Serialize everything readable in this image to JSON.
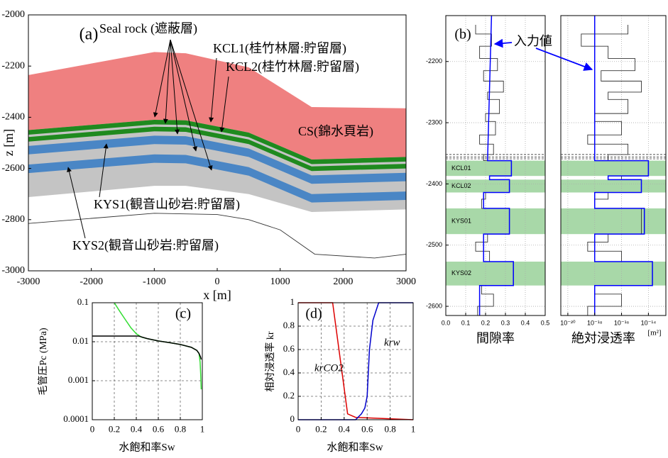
{
  "chart_data": [
    {
      "type": "area",
      "panel_label": "(a)",
      "xlabel": "x [m]",
      "ylabel": "z [m]",
      "x": [
        -3000,
        -1000,
        -500,
        500,
        1500,
        3000
      ],
      "bands": [
        {
          "color": "#c4c4c4",
          "top": [
            -2450,
            -2410,
            -2412,
            -2460,
            -2565,
            -2555
          ],
          "bottom": [
            -2712,
            -2668,
            -2668,
            -2700,
            -2770,
            -2760
          ]
        },
        {
          "color": "#ef8080",
          "top": [
            -2235,
            -2145,
            -2150,
            -2205,
            -2360,
            -2365
          ],
          "bottom": [
            -2450,
            -2410,
            -2412,
            -2460,
            -2565,
            -2555
          ]
        },
        {
          "color": "#1f8a1f",
          "top": [
            -2450,
            -2410,
            -2412,
            -2460,
            -2565,
            -2555
          ],
          "bottom": [
            -2468,
            -2428,
            -2430,
            -2478,
            -2583,
            -2573
          ]
        },
        {
          "color": "#1f8a1f",
          "top": [
            -2477,
            -2437,
            -2439,
            -2487,
            -2592,
            -2582
          ],
          "bottom": [
            -2495,
            -2455,
            -2457,
            -2505,
            -2610,
            -2600
          ]
        },
        {
          "color": "#4a86c5",
          "top": [
            -2512,
            -2472,
            -2474,
            -2522,
            -2627,
            -2617
          ],
          "bottom": [
            -2545,
            -2505,
            -2507,
            -2555,
            -2660,
            -2650
          ]
        },
        {
          "color": "#4a86c5",
          "top": [
            -2585,
            -2545,
            -2547,
            -2595,
            -2700,
            -2690
          ],
          "bottom": [
            -2618,
            -2578,
            -2580,
            -2628,
            -2733,
            -2723
          ]
        }
      ],
      "series": [
        {
          "color": "#333333",
          "x": [
            -3000,
            -2000,
            -1000,
            0,
            500,
            1000,
            1550,
            2500,
            3000
          ],
          "values": [
            -2815,
            -2795,
            -2775,
            -2780,
            -2800,
            -2840,
            -2935,
            -2950,
            -2935
          ]
        }
      ],
      "annotations": [
        "Seal rock (遮蔽層)",
        "KCL1(桂竹林層:貯留層)",
        "KCL2(桂竹林層:貯留層)",
        "CS(錦水頁岩)",
        "KYS1(観音山砂岩:貯留層)",
        "KYS2(観音山砂岩:貯留層)"
      ],
      "xlim": [
        -3000,
        3000
      ],
      "ylim": [
        -3000,
        -2000
      ],
      "xticks": [
        -3000,
        -2000,
        -1000,
        0,
        1000,
        2000,
        3000
      ],
      "yticks": [
        -3000,
        -2800,
        -2600,
        -2400,
        -2200,
        -2000
      ],
      "grid": false
    },
    {
      "type": "line",
      "panel_label": "(b)",
      "xlabel": "間隙率",
      "annotations": [
        "入力値"
      ],
      "series": [
        {
          "color": "#333333",
          "x": [
            0.15,
            0.15,
            0.23,
            0.23,
            0.17,
            0.17,
            0.26,
            0.26,
            0.19,
            0.19,
            0.29,
            0.29,
            0.21,
            0.21,
            0.27,
            0.27,
            0.2,
            0.2,
            0.25,
            0.25,
            0.17,
            0.17,
            0.24,
            0.24,
            0.19,
            0.19,
            0.33,
            0.33,
            0.22,
            0.22,
            0.32,
            0.32,
            0.2,
            0.2,
            0.18,
            0.18,
            0.32,
            0.32,
            0.21,
            0.21,
            0.15,
            0.15,
            0.22,
            0.22,
            0.34,
            0.34,
            0.18,
            0.18,
            0.24,
            0.24,
            0.16,
            0.16
          ],
          "values": [
            -2140,
            -2155,
            -2155,
            -2175,
            -2175,
            -2195,
            -2195,
            -2215,
            -2215,
            -2232,
            -2232,
            -2250,
            -2250,
            -2262,
            -2262,
            -2285,
            -2285,
            -2298,
            -2298,
            -2320,
            -2320,
            -2335,
            -2335,
            -2352,
            -2352,
            -2362,
            -2362,
            -2387,
            -2387,
            -2393,
            -2393,
            -2414,
            -2414,
            -2425,
            -2425,
            -2440,
            -2440,
            -2482,
            -2482,
            -2495,
            -2495,
            -2510,
            -2510,
            -2527,
            -2527,
            -2566,
            -2566,
            -2580,
            -2580,
            -2600,
            -2600,
            -2615
          ]
        },
        {
          "color": "#0000ff",
          "x": [
            0.23,
            0.21,
            0.33,
            0.33,
            0.22,
            0.22,
            0.32,
            0.32,
            0.19,
            0.19,
            0.32,
            0.32,
            0.19,
            0.19,
            0.34,
            0.34,
            0.17,
            0.17
          ],
          "values": [
            -2125,
            -2362,
            -2362,
            -2387,
            -2387,
            -2393,
            -2393,
            -2414,
            -2414,
            -2440,
            -2440,
            -2482,
            -2482,
            -2527,
            -2527,
            -2566,
            -2566,
            -2615
          ]
        }
      ],
      "spans": [
        {
          "label": "KCL01",
          "lim": [
            -2387,
            -2362
          ]
        },
        {
          "label": "KCL02",
          "lim": [
            -2414,
            -2393
          ]
        },
        {
          "label": "KYS01",
          "lim": [
            -2482,
            -2440
          ]
        },
        {
          "label": "KYS02",
          "lim": [
            -2566,
            -2527
          ]
        }
      ],
      "span_color": "#a8d8a8",
      "dashed_lines": [
        -2352,
        -2356,
        -2359
      ],
      "xlim": [
        0,
        0.5
      ],
      "ylim": [
        -2615,
        -2125
      ],
      "xticks": [
        {
          "value": 0,
          "label": "0.0"
        },
        0.1,
        0.2,
        0.3,
        0.4,
        0.5
      ],
      "yticks": [
        -2600,
        -2500,
        -2400,
        -2300,
        -2200
      ],
      "grid": true
    },
    {
      "type": "line",
      "xlabel": "絶対浸透率",
      "unit": "[m²]",
      "xscale": "log",
      "series": [
        {
          "color": "#333333",
          "x": [
            3e-16,
            3e-16,
            1e-19,
            1e-19,
            1e-17,
            1e-17,
            1e-15,
            1e-15,
            3e-18,
            3e-18,
            3e-15,
            3e-15,
            1e-17,
            1e-17,
            3e-16,
            3e-16,
            1e-18,
            1e-18,
            1e-16,
            1e-16,
            3e-19,
            3e-19,
            3e-16,
            3e-16,
            1e-17,
            1e-17,
            1e-14,
            1e-14,
            1e-16,
            1e-16,
            3e-15,
            3e-15,
            1e-17,
            1e-17,
            1e-18,
            1e-18,
            3e-15,
            3e-15,
            1e-17,
            1e-17,
            3e-19,
            3e-19,
            1e-16,
            1e-16,
            2e-14,
            2e-14,
            1e-18,
            1e-18,
            1e-16,
            1e-16,
            3e-19,
            3e-19
          ],
          "values": [
            -2140,
            -2155,
            -2155,
            -2175,
            -2175,
            -2195,
            -2195,
            -2215,
            -2215,
            -2232,
            -2232,
            -2250,
            -2250,
            -2262,
            -2262,
            -2285,
            -2285,
            -2298,
            -2298,
            -2320,
            -2320,
            -2335,
            -2335,
            -2352,
            -2352,
            -2362,
            -2362,
            -2387,
            -2387,
            -2393,
            -2393,
            -2414,
            -2414,
            -2425,
            -2425,
            -2440,
            -2440,
            -2482,
            -2482,
            -2495,
            -2495,
            -2510,
            -2510,
            -2527,
            -2527,
            -2566,
            -2566,
            -2580,
            -2580,
            -2600,
            -2600,
            -2615
          ]
        },
        {
          "color": "#0000ff",
          "x": [
            1e-18,
            1e-18,
            1e-14,
            1e-14,
            1e-17,
            1e-17,
            3e-15,
            3e-15,
            1e-18,
            1e-18,
            5e-15,
            5e-15,
            1e-18,
            1e-18,
            2e-14,
            2e-14,
            1e-18,
            1e-18
          ],
          "values": [
            -2125,
            -2362,
            -2362,
            -2387,
            -2387,
            -2393,
            -2393,
            -2414,
            -2414,
            -2440,
            -2440,
            -2482,
            -2482,
            -2527,
            -2527,
            -2566,
            -2566,
            -2615
          ]
        }
      ],
      "spans": [
        {
          "lim": [
            -2387,
            -2362
          ]
        },
        {
          "lim": [
            -2414,
            -2393
          ]
        },
        {
          "lim": [
            -2482,
            -2440
          ]
        },
        {
          "lim": [
            -2566,
            -2527
          ]
        }
      ],
      "span_color": "#a8d8a8",
      "dashed_lines": [
        -2352,
        -2356,
        -2359
      ],
      "xlim": [
        3e-21,
        2e-13
      ],
      "ylim": [
        -2615,
        -2125
      ],
      "xticks": [
        {
          "value": 1e-20,
          "label": "10⁻²⁰"
        },
        {
          "value": 1e-18,
          "label": "10⁻¹⁸"
        },
        {
          "value": 1e-16,
          "label": "10⁻¹⁶"
        },
        {
          "value": 1e-14,
          "label": "10⁻¹⁴"
        }
      ],
      "grid": true
    },
    {
      "type": "line",
      "panel_label": "(c)",
      "xlabel": "水飽和率Sw",
      "ylabel": "毛管圧Pc (MPa)",
      "yscale": "log",
      "series": [
        {
          "color": "#33dd33",
          "x": [
            0.2,
            0.25,
            0.3,
            0.35,
            0.4,
            0.45,
            0.5,
            0.6,
            0.7,
            0.8,
            0.9,
            0.95,
            0.97,
            0.98,
            0.985,
            0.99
          ],
          "values": [
            0.1,
            0.06,
            0.037,
            0.023,
            0.016,
            0.013,
            0.012,
            0.0105,
            0.0095,
            0.0085,
            0.0072,
            0.006,
            0.005,
            0.003,
            0.0015,
            0.0006
          ]
        },
        {
          "color": "#000000",
          "x": [
            0,
            0.42,
            0.5,
            0.6,
            0.7,
            0.8,
            0.9,
            0.95,
            0.97,
            0.985,
            0.99
          ],
          "values": [
            0.014,
            0.014,
            0.012,
            0.0105,
            0.0095,
            0.0085,
            0.0072,
            0.006,
            0.005,
            0.004,
            0.0035
          ]
        }
      ],
      "xlim": [
        0,
        1
      ],
      "ylim": [
        0.0001,
        0.1
      ],
      "xticks": [
        0,
        0.2,
        0.4,
        0.6,
        0.8,
        1
      ],
      "yticks": [
        0.0001,
        0.001,
        0.01,
        0.1
      ],
      "grid": true
    },
    {
      "type": "line",
      "panel_label": "(d)",
      "xlabel": "水飽和率Sw",
      "ylabel": "相対浸透率 kr",
      "series": [
        {
          "name": "krCO2",
          "color": "#dd0000",
          "x": [
            0,
            0.3,
            0.43,
            0.5,
            1
          ],
          "values": [
            1,
            1,
            0.05,
            0.02,
            0
          ]
        },
        {
          "name": "krw",
          "color": "#0000cc",
          "x": [
            0,
            0.5,
            0.55,
            0.58,
            0.6,
            0.62,
            0.65,
            0.7,
            1
          ],
          "values": [
            0,
            0,
            0.05,
            0.1,
            0.2,
            0.6,
            0.85,
            1,
            1
          ]
        }
      ],
      "xlim": [
        0,
        1
      ],
      "ylim": [
        0,
        1
      ],
      "xticks": [
        0,
        0.2,
        0.4,
        0.6,
        0.8,
        1
      ],
      "yticks": [
        0,
        0.2,
        0.4,
        0.6,
        0.8,
        1
      ],
      "grid": true
    }
  ]
}
